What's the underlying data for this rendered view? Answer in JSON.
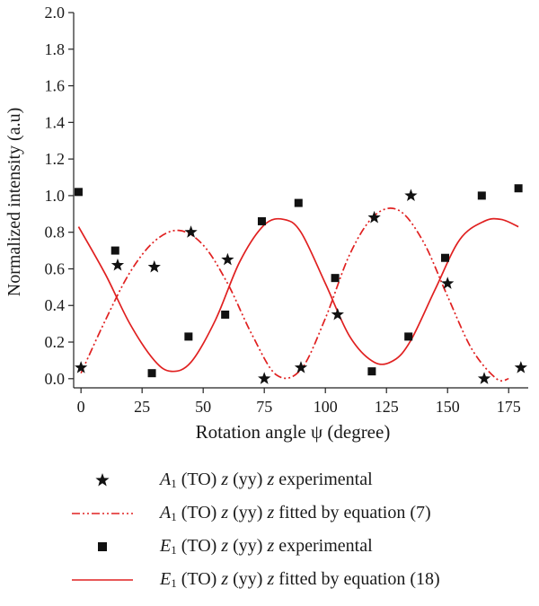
{
  "chart_data": {
    "type": "scatter",
    "xlabel": "Rotation angle ψ (degree)",
    "ylabel": "Normalized intensity (a.u)",
    "xlim": [
      -3,
      183
    ],
    "ylim": [
      -0.05,
      2.0
    ],
    "x_ticks": [
      0,
      25,
      50,
      75,
      100,
      125,
      150,
      175
    ],
    "y_ticks": [
      "0.0",
      "0.2",
      "0.4",
      "0.6",
      "0.8",
      "1.0",
      "1.2",
      "1.4",
      "1.6",
      "1.8",
      "2.0"
    ],
    "y_tick_values": [
      0.0,
      0.2,
      0.4,
      0.6,
      0.8,
      1.0,
      1.2,
      1.4,
      1.6,
      1.8,
      2.0
    ],
    "y_tick_labels": [
      "0.0",
      "0.2",
      "0.4",
      "0.6",
      "0.8",
      "1.0",
      "1.2",
      "1.4",
      "1.6",
      "1.8",
      "2.0"
    ],
    "legend_position": "bottom",
    "series": [
      {
        "name": "A1 (TO) z (yy) z experimental",
        "kind": "scatter",
        "marker": "star",
        "color": "#111111",
        "x": [
          0,
          15,
          30,
          45,
          60,
          75,
          90,
          105,
          120,
          135,
          150,
          165,
          180
        ],
        "y": [
          0.06,
          0.62,
          0.61,
          0.8,
          0.65,
          0.0,
          0.06,
          0.35,
          0.88,
          1.0,
          0.52,
          0.0,
          0.06
        ]
      },
      {
        "name": "A1 (TO) z (yy) z fitted by equation (7)",
        "kind": "line",
        "dash": "dash-dot-dot",
        "color": "#e02020",
        "x": [
          0,
          10,
          20,
          30,
          40,
          50,
          60,
          70,
          80,
          90,
          100,
          110,
          120,
          130,
          140,
          150,
          160,
          170,
          175
        ],
        "y": [
          0.03,
          0.32,
          0.58,
          0.75,
          0.81,
          0.73,
          0.52,
          0.24,
          0.02,
          0.05,
          0.33,
          0.68,
          0.89,
          0.92,
          0.75,
          0.45,
          0.16,
          0.0,
          0.0
        ]
      },
      {
        "name": "E1 (TO) z (yy) z experimental",
        "kind": "scatter",
        "marker": "square",
        "color": "#111111",
        "x": [
          -1,
          14,
          29,
          44,
          59,
          74,
          89,
          104,
          119,
          134,
          149,
          164,
          179
        ],
        "y": [
          1.02,
          0.7,
          0.03,
          0.23,
          0.35,
          0.86,
          0.96,
          0.55,
          0.04,
          0.23,
          0.66,
          1.0,
          1.04
        ]
      },
      {
        "name": "E1 (TO) z (yy) z fitted by equation (18)",
        "kind": "line",
        "dash": "solid",
        "color": "#e02020",
        "x": [
          -1,
          10,
          20,
          30,
          37,
          45,
          55,
          65,
          75,
          83,
          90,
          100,
          110,
          120,
          128,
          135,
          145,
          155,
          165,
          172,
          179
        ],
        "y": [
          0.83,
          0.57,
          0.3,
          0.1,
          0.04,
          0.09,
          0.32,
          0.64,
          0.84,
          0.87,
          0.8,
          0.52,
          0.23,
          0.09,
          0.1,
          0.21,
          0.49,
          0.76,
          0.86,
          0.87,
          0.83
        ]
      }
    ]
  },
  "legend": {
    "items": [
      {
        "marker": "star",
        "sym": "A",
        "sub": "1",
        "mid": " (TO) ",
        "z1": "z",
        "yy": " (yy) ",
        "z2": "z",
        "tail": " experimental"
      },
      {
        "marker": "dashdot-line",
        "sym": "A",
        "sub": "1",
        "mid": " (TO) ",
        "z1": "z",
        "yy": " (yy) ",
        "z2": "z",
        "tail": " fitted by equation (7)"
      },
      {
        "marker": "square",
        "sym": "E",
        "sub": "1",
        "mid": " (TO) ",
        "z1": "z",
        "yy": " (yy) ",
        "z2": "z",
        "tail": " experimental"
      },
      {
        "marker": "solid-line",
        "sym": "E",
        "sub": "1",
        "mid": " (TO) ",
        "z1": "z",
        "yy": " (yy) ",
        "z2": "z",
        "tail": " fitted by equation (18)"
      }
    ]
  }
}
